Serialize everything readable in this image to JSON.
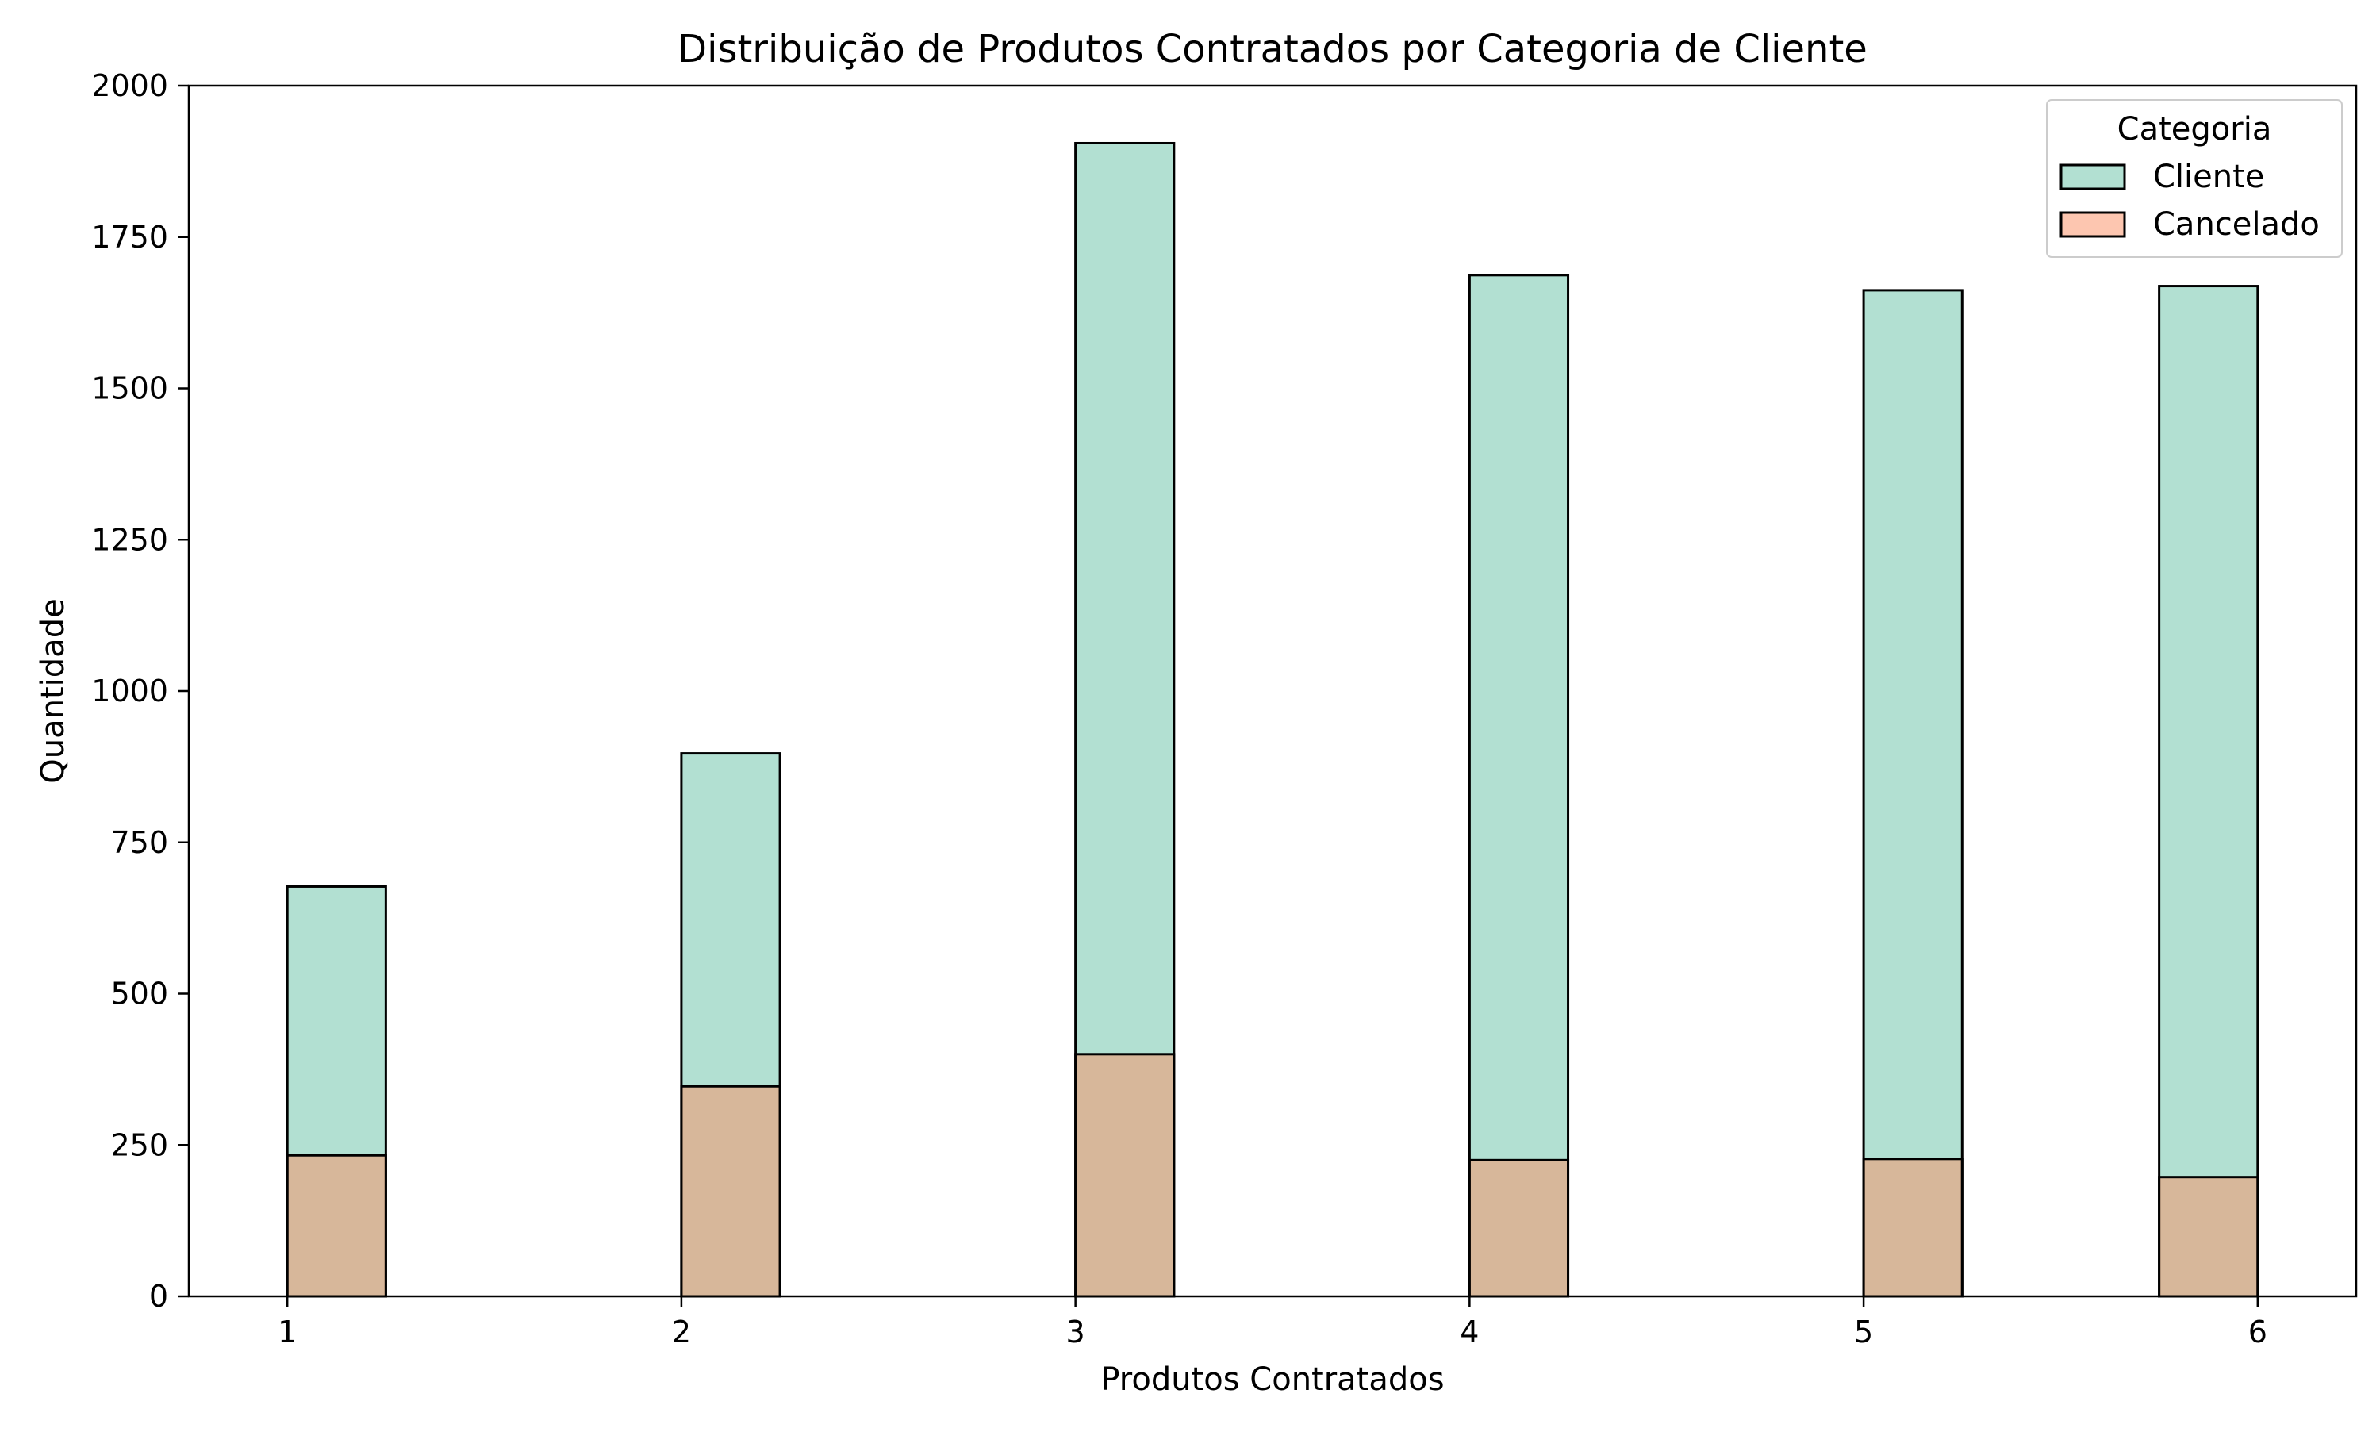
{
  "chart_data": {
    "type": "bar",
    "chart_kind": "overlapping histogram",
    "title": "Distribuição de Produtos Contratados por Categoria de Cliente",
    "xlabel": "Produtos Contratados",
    "ylabel": "Quantidade",
    "xlim": [
      0.75,
      6.25
    ],
    "ylim": [
      0,
      2000
    ],
    "x_ticks": [
      1,
      2,
      3,
      4,
      5,
      6
    ],
    "y_ticks": [
      0,
      250,
      500,
      750,
      1000,
      1250,
      1500,
      1750,
      2000
    ],
    "bin_width": 0.25,
    "grid": false,
    "legend": {
      "title": "Categoria",
      "placement": "top-right"
    },
    "series": [
      {
        "name": "Cliente",
        "color": "#66c2a5",
        "opacity": 0.5,
        "x": [
          1,
          2,
          3,
          4,
          5,
          5.75
        ],
        "values": [
          677,
          897,
          1905,
          1687,
          1662,
          1669
        ]
      },
      {
        "name": "Cancelado",
        "color": "#fc8d62",
        "opacity": 0.5,
        "x": [
          1,
          2,
          3,
          4,
          5,
          5.75
        ],
        "values": [
          233,
          347,
          400,
          225,
          227,
          197
        ]
      }
    ]
  }
}
